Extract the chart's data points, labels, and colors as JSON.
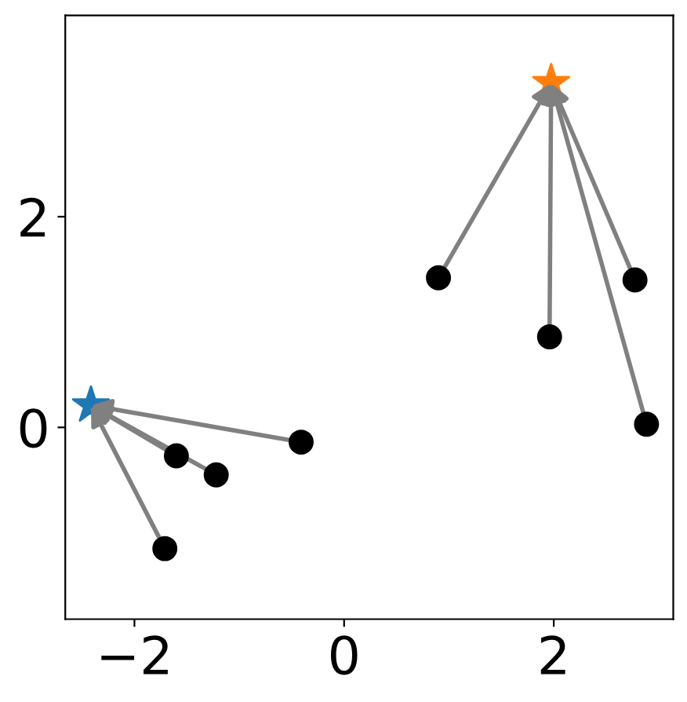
{
  "chart_data": {
    "type": "scatter",
    "xlim": [
      -2.66,
      3.14
    ],
    "ylim": [
      -1.82,
      3.91
    ],
    "xticks": [
      {
        "value": -2,
        "label": "−2"
      },
      0,
      2
    ],
    "yticks": [
      0,
      2
    ],
    "grid": false,
    "series": [
      {
        "color": "#000000",
        "marker": "circle",
        "x": [
          -1.6,
          -1.22,
          -0.41,
          -1.71
        ],
        "values": [
          -0.27,
          -0.45,
          -0.14,
          -1.15
        ]
      },
      {
        "color": "#1f77b4",
        "marker": "star",
        "x": [
          -2.415
        ],
        "values": [
          0.21
        ]
      },
      {
        "color": "#000000",
        "marker": "circle",
        "x": [
          0.9,
          1.96,
          2.775,
          2.885
        ],
        "values": [
          1.42,
          0.86,
          1.4,
          0.03
        ]
      },
      {
        "color": "#ff7f0e",
        "marker": "star",
        "x": [
          1.975
        ],
        "values": [
          3.27
        ]
      }
    ]
  }
}
